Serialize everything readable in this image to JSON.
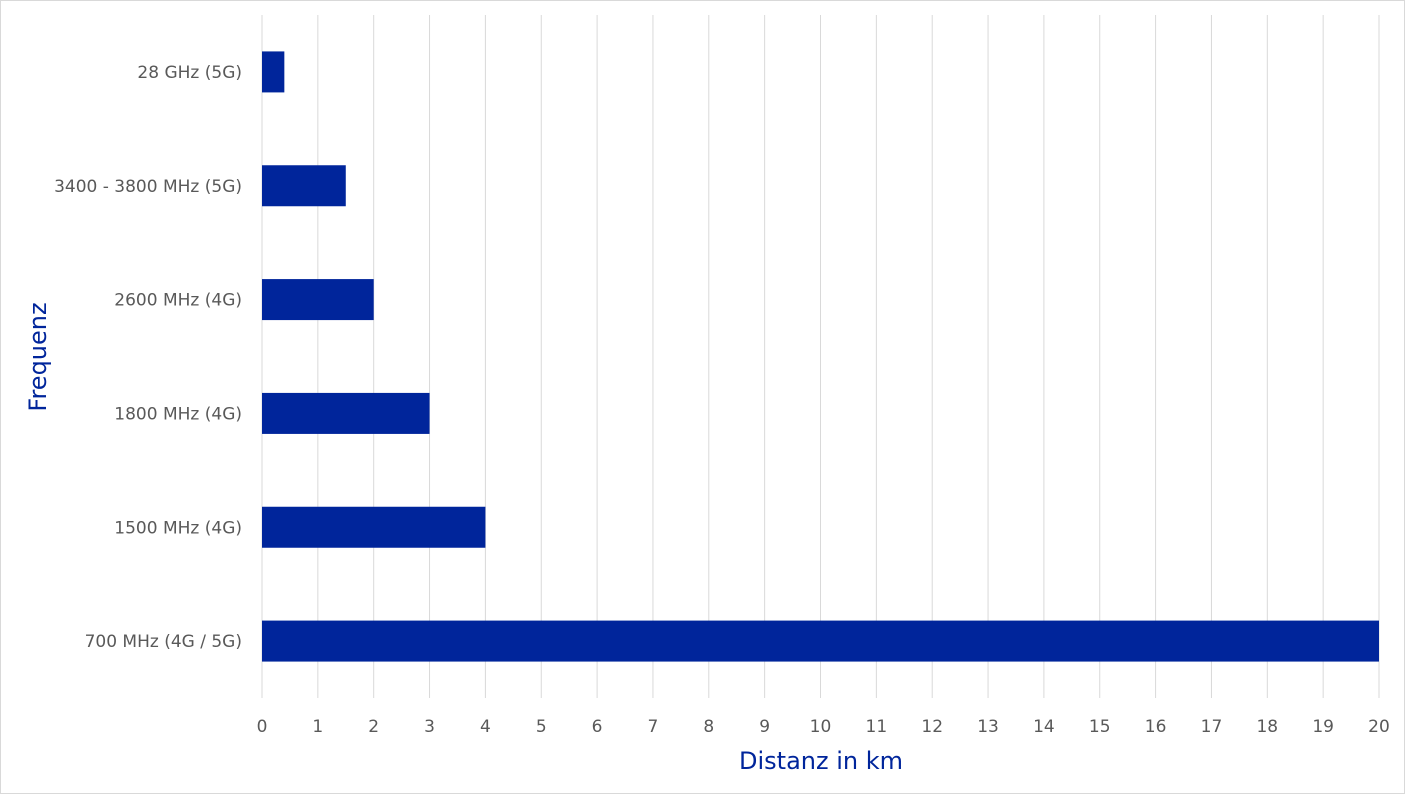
{
  "chart_data": {
    "type": "bar",
    "orientation": "horizontal",
    "categories": [
      "28 GHz (5G)",
      "3400 - 3800 MHz (5G)",
      "2600 MHz (4G)",
      "1800 MHz (4G)",
      "1500 MHz (4G)",
      "700 MHz (4G / 5G)"
    ],
    "values": [
      0.4,
      1.5,
      2,
      3,
      4,
      20
    ],
    "xlabel": "Distanz in km",
    "ylabel": "Frequenz",
    "xlim": [
      0,
      20
    ],
    "xticks": [
      "0",
      "1",
      "2",
      "3",
      "4",
      "5",
      "6",
      "7",
      "8",
      "9",
      "10",
      "11",
      "12",
      "13",
      "14",
      "15",
      "16",
      "17",
      "18",
      "19",
      "20"
    ],
    "grid": true,
    "legend": "none",
    "colors": {
      "bar": "#00259b",
      "axis_title": "#00259b",
      "grid": "#d9d9d9",
      "label": "#595959"
    }
  }
}
